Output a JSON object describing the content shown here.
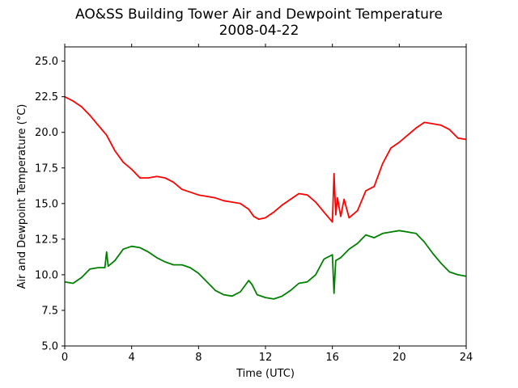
{
  "chart_data": {
    "type": "line",
    "title": "AO&SS Building Tower Air and Dewpoint Temperature",
    "subtitle": "2008-04-22",
    "xlabel": "Time (UTC)",
    "ylabel": "Air and Dewpoint Temperature (°C)",
    "xlim": [
      0,
      24
    ],
    "ylim": [
      5.0,
      26.0
    ],
    "xticks": [
      "0",
      "4",
      "8",
      "12",
      "16",
      "20",
      "24"
    ],
    "yticks": [
      "5.0",
      "7.5",
      "10.0",
      "12.5",
      "15.0",
      "17.5",
      "20.0",
      "22.5",
      "25.0"
    ],
    "grid": false,
    "series": [
      {
        "color": "#ff0000",
        "x": [
          0,
          0.5,
          1,
          1.5,
          2,
          2.5,
          3,
          3.5,
          4,
          4.5,
          5,
          5.5,
          6,
          6.5,
          7,
          7.5,
          8,
          8.5,
          9,
          9.5,
          10,
          10.5,
          11,
          11.3,
          11.6,
          12,
          12.5,
          13,
          13.5,
          14,
          14.5,
          15,
          15.5,
          16,
          16.1,
          16.2,
          16.3,
          16.5,
          16.7,
          17,
          17.5,
          18,
          18.5,
          19,
          19.5,
          20,
          20.5,
          21,
          21.5,
          22,
          22.5,
          23,
          23.5,
          24
        ],
        "y": [
          22.5,
          22.2,
          21.8,
          21.2,
          20.5,
          19.8,
          18.7,
          17.9,
          17.4,
          16.8,
          16.8,
          16.9,
          16.8,
          16.5,
          16.0,
          15.8,
          15.6,
          15.5,
          15.4,
          15.2,
          15.1,
          15.0,
          14.6,
          14.1,
          13.9,
          14.0,
          14.4,
          14.9,
          15.3,
          15.7,
          15.6,
          15.1,
          14.4,
          13.7,
          17.1,
          14.2,
          15.4,
          14.1,
          15.3,
          14.0,
          14.5,
          15.9,
          16.2,
          17.8,
          18.9,
          19.3,
          19.8,
          20.3,
          20.7,
          20.6,
          20.5,
          20.2,
          19.6,
          19.5
        ]
      },
      {
        "color": "#008000",
        "x": [
          0,
          0.5,
          1,
          1.5,
          2,
          2.4,
          2.5,
          2.6,
          3,
          3.5,
          4,
          4.5,
          5,
          5.5,
          6,
          6.5,
          7,
          7.5,
          8,
          8.5,
          9,
          9.5,
          10,
          10.5,
          11,
          11.2,
          11.5,
          12,
          12.5,
          13,
          13.5,
          14,
          14.5,
          15,
          15.5,
          16,
          16.05,
          16.1,
          16.2,
          16.5,
          17,
          17.5,
          18,
          18.5,
          19,
          19.5,
          20,
          20.5,
          21,
          21.5,
          22,
          22.5,
          23,
          23.5,
          24
        ],
        "y": [
          9.5,
          9.4,
          9.8,
          10.4,
          10.5,
          10.5,
          11.6,
          10.6,
          11.0,
          11.8,
          12.0,
          11.9,
          11.6,
          11.2,
          10.9,
          10.7,
          10.7,
          10.5,
          10.1,
          9.5,
          8.9,
          8.6,
          8.5,
          8.8,
          9.6,
          9.3,
          8.6,
          8.4,
          8.3,
          8.5,
          8.9,
          9.4,
          9.5,
          10.0,
          11.1,
          11.4,
          10.0,
          8.7,
          11.0,
          11.2,
          11.8,
          12.2,
          12.8,
          12.6,
          12.9,
          13.0,
          13.1,
          13.0,
          12.9,
          12.3,
          11.5,
          10.8,
          10.2,
          10.0,
          9.9
        ]
      }
    ]
  }
}
